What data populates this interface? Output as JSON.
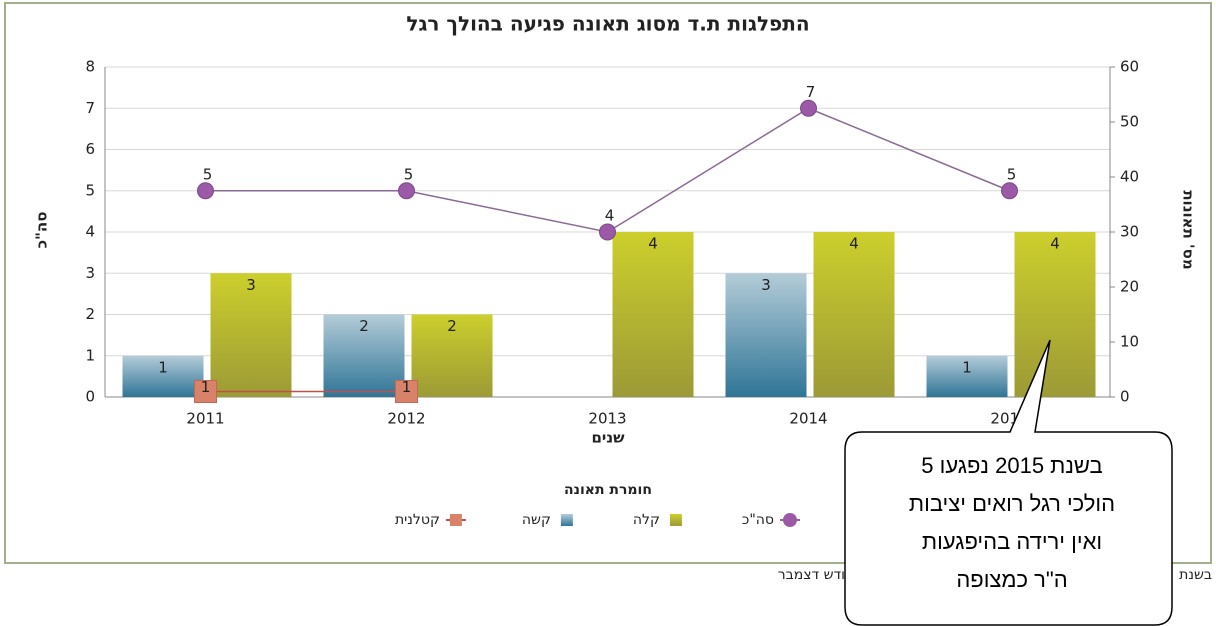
{
  "chart_data": {
    "type": "bar",
    "title": "התפלגות ת.ד מסוג תאונה פגיעה בהולך רגל",
    "x_label": "שנים",
    "y_label": "סה\"כ",
    "y2_label": "מס' תאונות",
    "legend_title": "חומרת תאונה",
    "categories": [
      "2011",
      "2012",
      "2013",
      "2014",
      "2015"
    ],
    "series": [
      {
        "name": "סה\"כ",
        "type": "line",
        "color": "#9b59a8",
        "values": [
          5,
          5,
          4,
          7,
          5
        ]
      },
      {
        "name": "קלה",
        "type": "bar",
        "color": "#b8bc2a",
        "values": [
          3,
          2,
          4,
          4,
          4
        ]
      },
      {
        "name": "קשה",
        "type": "bar",
        "color": "#4a8aa8",
        "values": [
          1,
          2,
          null,
          3,
          1
        ]
      },
      {
        "name": "קטלנית",
        "type": "line",
        "color": "#d9826a",
        "axis": "y2",
        "values": [
          1,
          1,
          null,
          null,
          null
        ]
      }
    ],
    "ylim": [
      0,
      8
    ],
    "yticks": [
      0,
      1,
      2,
      3,
      4,
      5,
      6,
      7,
      8
    ],
    "y2lim": [
      0,
      60
    ],
    "y2ticks": [
      0,
      10,
      20,
      30,
      40,
      50,
      60
    ],
    "grid": true,
    "legend_position": "bottom",
    "callout": [
      "בשנת 2015 נפגעו 5",
      "הולכי רגל רואים יציבות",
      "ואין ירידה בהיפגעות",
      "ה\"ר כמצופה"
    ],
    "footnote_fragments": [
      "בשנת",
      "ודש דצמבר"
    ]
  }
}
